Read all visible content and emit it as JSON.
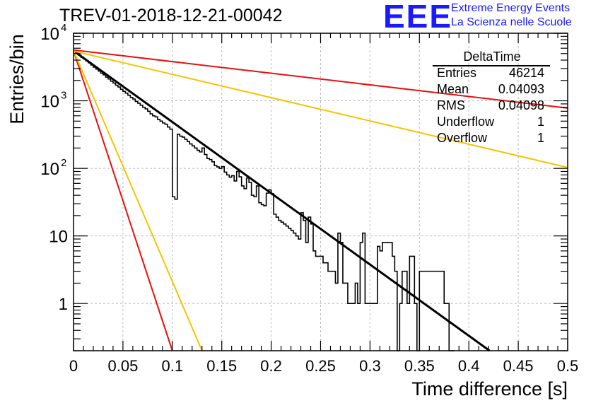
{
  "header": {
    "title": "TREV-01-2018-12-21-00042",
    "logo_text": "EEE",
    "logo_line1": "Extreme Energy Events",
    "logo_line2": "La Scienza nelle Scuole"
  },
  "stats": {
    "title": "DeltaTime",
    "rows": [
      {
        "label": "Entries",
        "value": "46214"
      },
      {
        "label": "Mean",
        "value": "0.04093"
      },
      {
        "label": "RMS",
        "value": "0.04098"
      },
      {
        "label": "Underflow",
        "value": "1"
      },
      {
        "label": "Overflow",
        "value": "1"
      }
    ]
  },
  "chart_data": {
    "type": "line",
    "xlabel": "Time difference [s]",
    "ylabel": "Entries/bin",
    "xlim": [
      0,
      0.5
    ],
    "ylim": [
      0.2,
      10000
    ],
    "y_scale": "log",
    "grid": true,
    "x_ticks": [
      "0",
      "0.05",
      "0.1",
      "0.15",
      "0.2",
      "0.25",
      "0.3",
      "0.35",
      "0.4",
      "0.45",
      "0.5"
    ],
    "x_tick_values": [
      0,
      0.05,
      0.1,
      0.15,
      0.2,
      0.25,
      0.3,
      0.35,
      0.4,
      0.45,
      0.5
    ],
    "y_ticks": [
      {
        "value": 10000,
        "base": "10",
        "exp": "4"
      },
      {
        "value": 1000,
        "base": "10",
        "exp": "3"
      },
      {
        "value": 100,
        "base": "10",
        "exp": "2"
      },
      {
        "value": 10,
        "base": "10",
        "exp": ""
      },
      {
        "value": 1,
        "base": "1",
        "exp": ""
      }
    ],
    "histogram": {
      "bin_width": 0.0025,
      "values": [
        5400,
        5000,
        4750,
        4400,
        4150,
        3900,
        3650,
        3380,
        3150,
        2950,
        2760,
        2560,
        2420,
        2240,
        2100,
        1950,
        1830,
        1700,
        1600,
        1480,
        1380,
        1300,
        1210,
        1120,
        1060,
        980,
        920,
        860,
        800,
        760,
        700,
        640,
        600,
        580,
        530,
        500,
        470,
        450,
        410,
        380,
        360,
        340,
        320,
        300,
        290,
        270,
        250,
        230,
        215,
        200,
        185,
        175,
        165,
        155,
        140,
        135,
        125,
        110,
        105,
        100,
        93,
        88,
        80,
        74,
        69,
        65,
        62,
        58,
        55,
        50,
        46,
        44,
        40,
        38,
        33,
        31,
        29,
        28,
        26,
        24,
        22,
        21,
        19,
        17,
        16,
        15,
        14,
        13,
        12,
        11,
        10,
        9,
        9,
        8,
        8,
        7,
        6,
        6,
        5,
        5,
        5,
        4,
        4,
        3,
        3,
        3,
        2,
        2,
        2,
        2,
        2,
        1,
        1,
        1,
        2,
        1,
        1,
        1,
        1,
        1,
        1,
        1,
        1,
        1,
        1,
        1,
        0,
        0,
        0,
        1,
        1,
        0,
        1,
        0,
        1,
        1,
        0,
        0,
        1,
        0,
        0,
        0,
        0,
        1,
        1,
        0,
        1,
        1,
        1,
        1,
        1,
        1,
        0,
        0
      ],
      "override_values": [
        [
          40,
          38
        ],
        [
          41,
          35
        ],
        [
          52,
          200
        ],
        [
          53,
          160
        ],
        [
          60,
          106
        ],
        [
          64,
          78
        ],
        [
          66,
          90
        ],
        [
          67,
          75
        ],
        [
          70,
          72
        ],
        [
          71,
          62
        ],
        [
          74,
          55
        ],
        [
          78,
          43
        ],
        [
          79,
          48
        ],
        [
          80,
          42
        ],
        [
          92,
          22
        ],
        [
          93,
          17
        ],
        [
          95,
          19
        ],
        [
          96,
          15
        ],
        [
          107,
          11
        ],
        [
          108,
          8
        ],
        [
          116,
          8
        ],
        [
          117,
          11
        ],
        [
          123,
          7
        ],
        [
          124,
          6
        ],
        [
          125,
          8
        ],
        [
          126,
          8
        ],
        [
          127,
          8
        ],
        [
          128,
          8
        ],
        [
          129,
          5
        ],
        [
          130,
          3
        ],
        [
          133,
          3
        ],
        [
          134,
          3
        ],
        [
          136,
          5
        ],
        [
          137,
          5
        ],
        [
          140,
          3
        ],
        [
          141,
          3
        ],
        [
          142,
          3
        ],
        [
          143,
          3
        ],
        [
          144,
          3
        ],
        [
          145,
          3
        ],
        [
          146,
          3
        ],
        [
          147,
          3
        ],
        [
          148,
          3
        ],
        [
          149,
          3
        ]
      ]
    },
    "series": [
      {
        "kind": "fit",
        "color": "#000000",
        "x": [
          0,
          0.421
        ],
        "y": [
          5500,
          0.2
        ]
      },
      {
        "kind": "band",
        "color": "#e81010",
        "x": [
          0,
          0.5
        ],
        "y": [
          5650,
          780
        ]
      },
      {
        "kind": "band",
        "color": "#f5c400",
        "x": [
          0,
          0.5
        ],
        "y": [
          5450,
          103
        ]
      },
      {
        "kind": "band",
        "color": "#e81010",
        "x": [
          0,
          0.1
        ],
        "y": [
          5500,
          0.2
        ]
      },
      {
        "kind": "band",
        "color": "#f5c400",
        "x": [
          0,
          0.13
        ],
        "y": [
          5500,
          0.2
        ]
      }
    ]
  }
}
